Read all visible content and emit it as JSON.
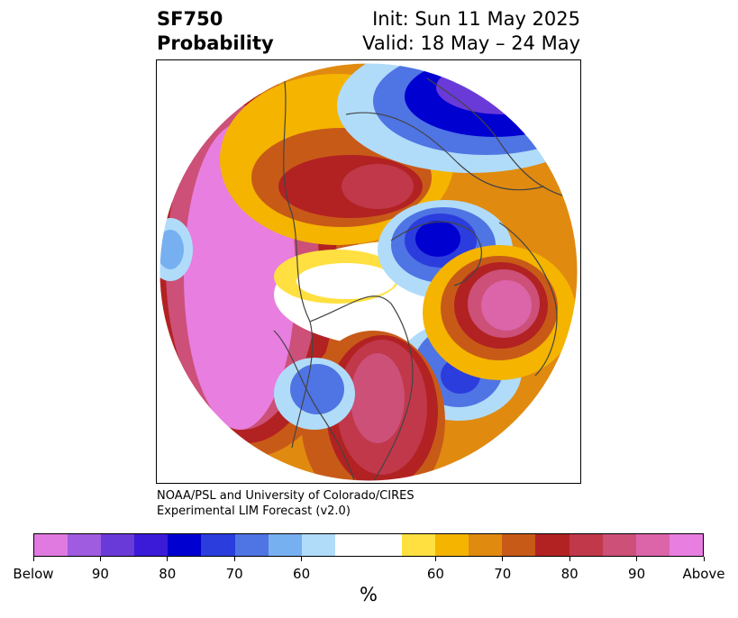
{
  "title": {
    "variable": "SF750",
    "subtitle": "Probability",
    "init": "Init: Sun 11 May 2025",
    "valid": "Valid: 18 May – 24 May"
  },
  "credit": {
    "line1": "NOAA/PSL and University of Colorado/CIRES",
    "line2": "Experimental LIM Forecast (v2.0)"
  },
  "colorbar": {
    "unit": "%",
    "colors": [
      "#e07ae0",
      "#9f5ce0",
      "#6a3ad8",
      "#3b1ad8",
      "#0000d0",
      "#2b3ddc",
      "#4f74e4",
      "#77b0f0",
      "#b0dcfa",
      "#ffffff",
      "#ffffff",
      "#ffe040",
      "#f4b400",
      "#e08a10",
      "#c85a18",
      "#b22222",
      "#c0384a",
      "#cc5078",
      "#dc64a8",
      "#e87ee0"
    ],
    "tick_labels": [
      "Below",
      "90",
      "80",
      "70",
      "60",
      "60",
      "70",
      "80",
      "90",
      "Above"
    ]
  }
}
